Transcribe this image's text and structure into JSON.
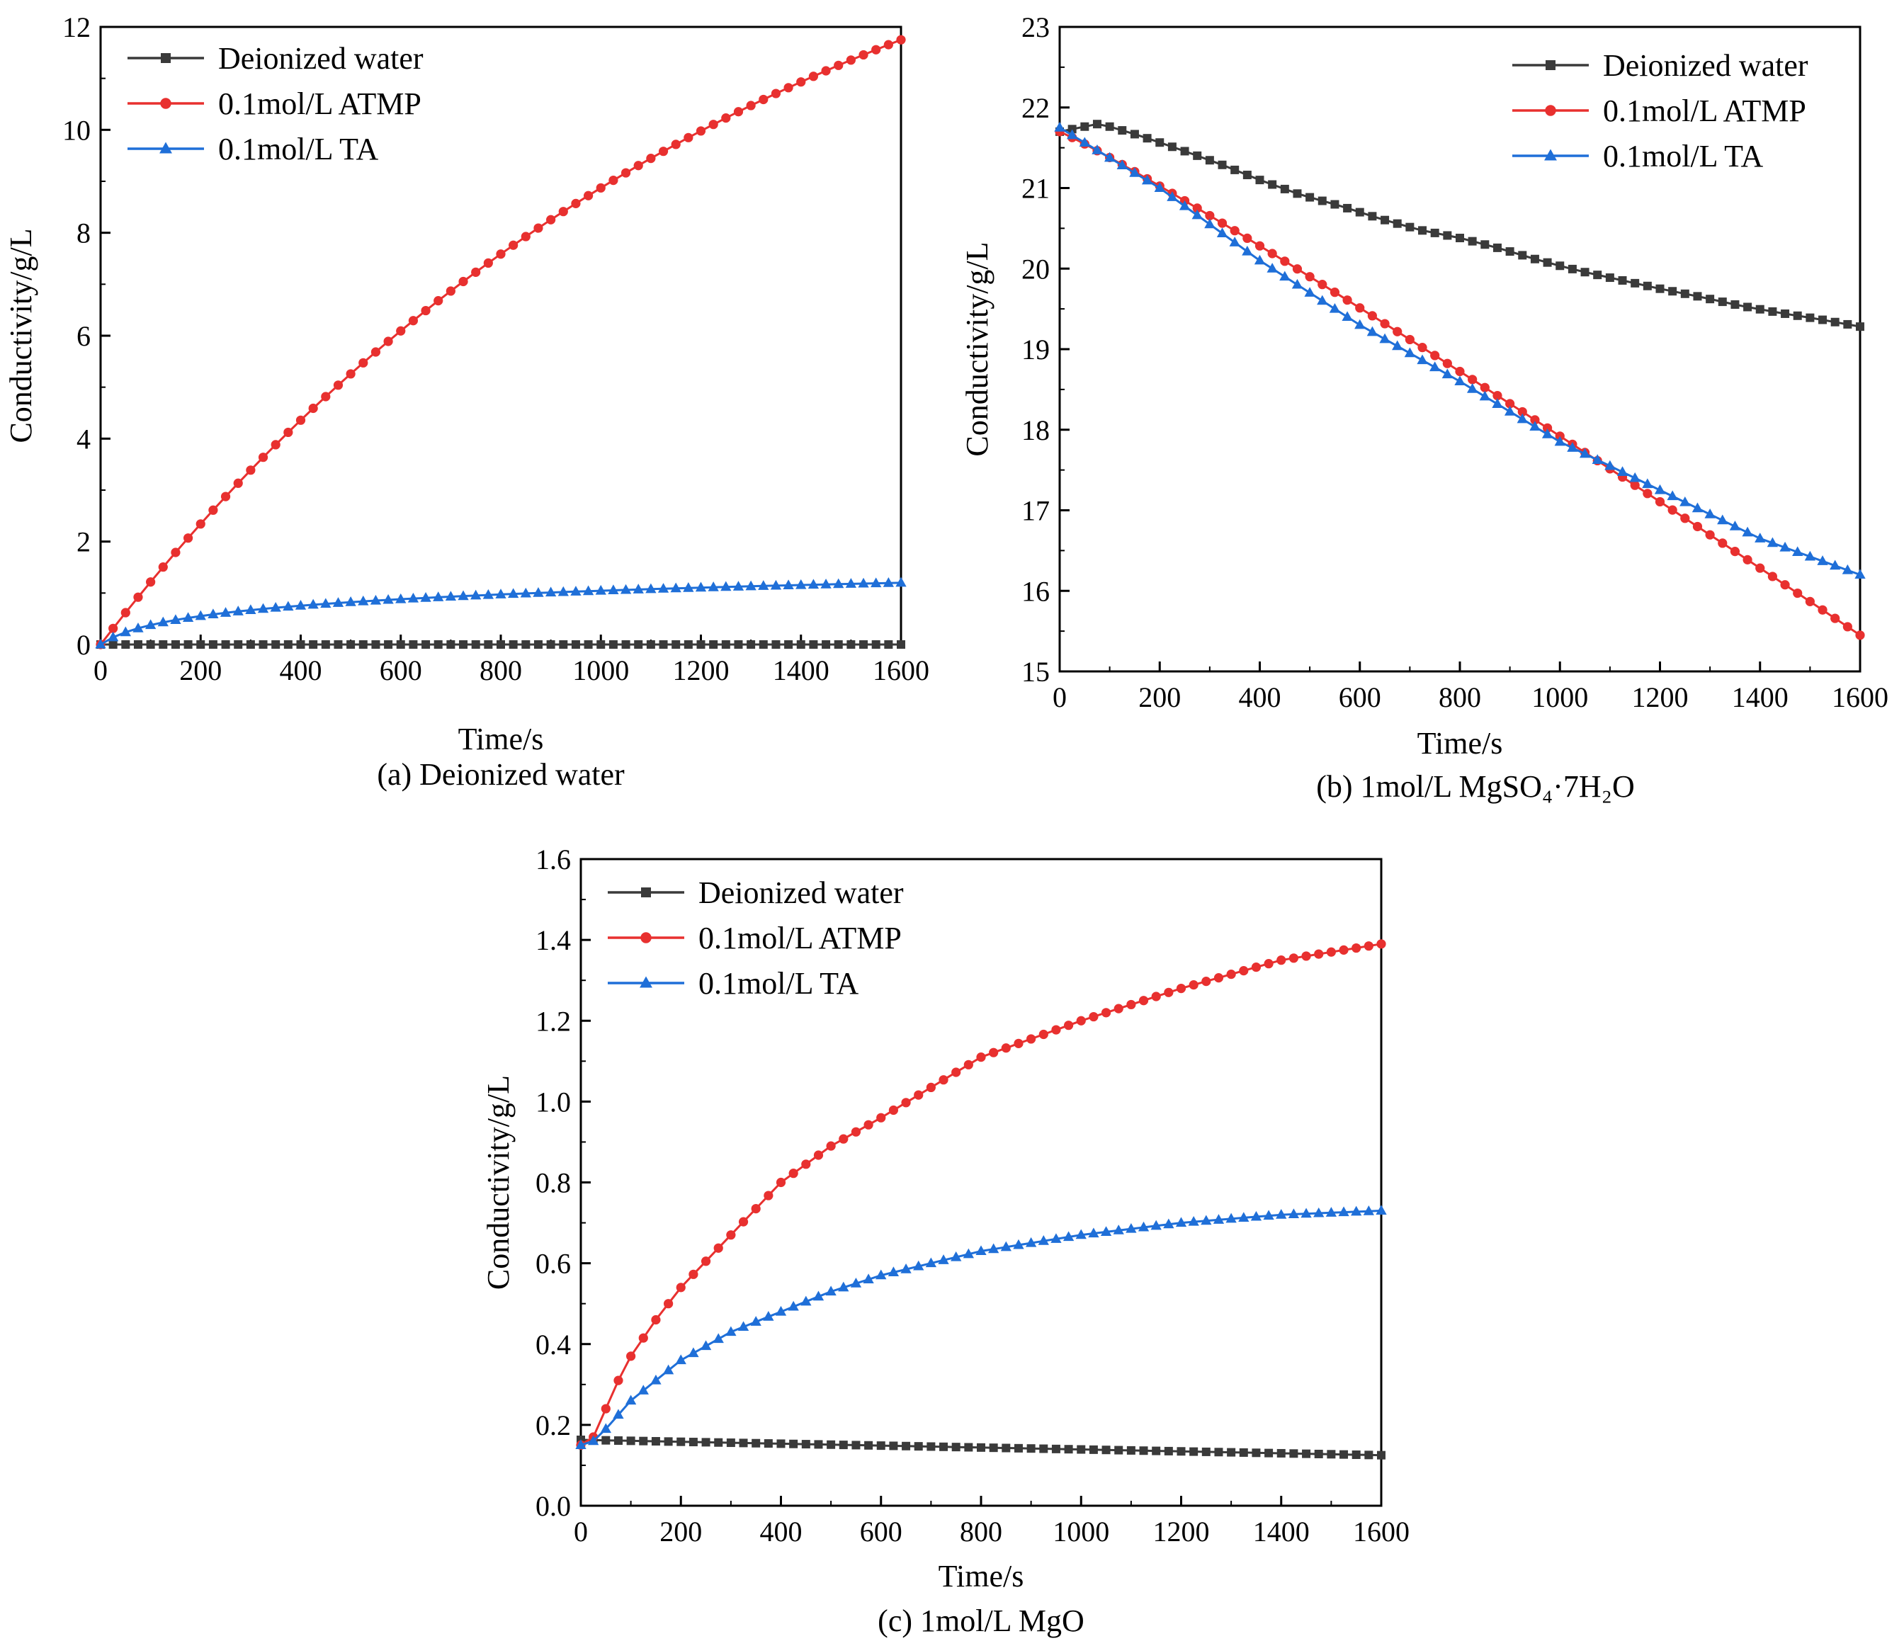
{
  "figure": {
    "colors": {
      "deionized": "#3a3a3a",
      "atmp": "#e8302f",
      "ta": "#1f6fd8",
      "axis": "#000000",
      "background": "#ffffff"
    }
  },
  "chart_data": [
    {
      "type": "line",
      "caption": "(a) Deionized water",
      "xlabel": "Time/s",
      "ylabel": "Conductivity/g/L",
      "xlim": [
        0,
        1600
      ],
      "ylim": [
        0,
        12
      ],
      "xticks": [
        0,
        200,
        400,
        600,
        800,
        1000,
        1200,
        1400,
        1600
      ],
      "yticks": [
        0,
        2,
        4,
        6,
        8,
        10,
        12
      ],
      "ytick_labels": [
        "0",
        "2",
        "4",
        "6",
        "8",
        "10",
        "12"
      ],
      "legend_position": "top-left",
      "grid": false,
      "series": [
        {
          "name": "Deionized water",
          "marker": "square",
          "color_key": "deionized",
          "model": "flat",
          "start": 0.0,
          "end": 0.0
        },
        {
          "name": "0.1mol/L ATMP",
          "marker": "circle",
          "color_key": "atmp",
          "model": "saturating",
          "start": 0.0,
          "end": 11.75,
          "k": 0.00075
        },
        {
          "name": "0.1mol/L TA",
          "marker": "triangle",
          "color_key": "ta",
          "model": "log",
          "start": 0.0,
          "end": 1.2,
          "k": 0.02
        }
      ]
    },
    {
      "type": "line",
      "caption": "(b) 1mol/L MgSO₄·7H₂O",
      "xlabel": "Time/s",
      "ylabel": "Conductivity/g/L",
      "xlim": [
        0,
        1600
      ],
      "ylim": [
        15,
        23
      ],
      "xticks": [
        0,
        200,
        400,
        600,
        800,
        1000,
        1200,
        1400,
        1600
      ],
      "yticks": [
        15,
        16,
        17,
        18,
        19,
        20,
        21,
        22,
        23
      ],
      "ytick_labels": [
        "15",
        "16",
        "17",
        "18",
        "19",
        "20",
        "21",
        "22",
        "23"
      ],
      "legend_position": "top-right",
      "grid": false,
      "series": [
        {
          "name": "Deionized water",
          "marker": "square",
          "color_key": "deionized",
          "model": "points",
          "x": [
            0,
            80,
            160,
            240,
            320,
            400,
            480,
            560,
            640,
            720,
            800,
            880,
            960,
            1040,
            1120,
            1200,
            1280,
            1360,
            1440,
            1520,
            1600
          ],
          "y": [
            21.7,
            21.8,
            21.65,
            21.48,
            21.3,
            21.1,
            20.92,
            20.78,
            20.62,
            20.48,
            20.38,
            20.25,
            20.1,
            19.97,
            19.86,
            19.75,
            19.65,
            19.54,
            19.45,
            19.37,
            19.28
          ]
        },
        {
          "name": "0.1mol/L ATMP",
          "marker": "circle",
          "color_key": "atmp",
          "model": "curve",
          "start": 21.7,
          "end": 15.45,
          "p": 1.07
        },
        {
          "name": "0.1mol/L TA",
          "marker": "triangle",
          "color_key": "ta",
          "model": "points",
          "x": [
            0,
            200,
            400,
            600,
            800,
            1000,
            1200,
            1400,
            1600
          ],
          "y": [
            21.75,
            21.0,
            20.1,
            19.3,
            18.6,
            17.85,
            17.25,
            16.65,
            16.2
          ]
        }
      ]
    },
    {
      "type": "line",
      "caption": "(c) 1mol/L MgO",
      "xlabel": "Time/s",
      "ylabel": "Conductivity/g/L",
      "xlim": [
        0,
        1600
      ],
      "ylim": [
        0,
        1.6
      ],
      "xticks": [
        0,
        200,
        400,
        600,
        800,
        1000,
        1200,
        1400,
        1600
      ],
      "yticks": [
        0,
        0.2,
        0.4,
        0.6,
        0.8,
        1.0,
        1.2,
        1.4,
        1.6
      ],
      "ytick_labels": [
        "0.0",
        "0.2",
        "0.4",
        "0.6",
        "0.8",
        "1.0",
        "1.2",
        "1.4",
        "1.6"
      ],
      "legend_position": "top-left",
      "grid": false,
      "series": [
        {
          "name": "Deionized water",
          "marker": "square",
          "color_key": "deionized",
          "model": "linear",
          "start": 0.163,
          "end": 0.125
        },
        {
          "name": "0.1mol/L ATMP",
          "marker": "circle",
          "color_key": "atmp",
          "model": "points",
          "x": [
            0,
            25,
            50,
            75,
            100,
            150,
            200,
            300,
            400,
            500,
            600,
            800,
            1000,
            1200,
            1400,
            1600
          ],
          "y": [
            0.15,
            0.17,
            0.24,
            0.31,
            0.37,
            0.46,
            0.54,
            0.67,
            0.8,
            0.89,
            0.96,
            1.11,
            1.2,
            1.28,
            1.35,
            1.39
          ]
        },
        {
          "name": "0.1mol/L TA",
          "marker": "triangle",
          "color_key": "ta",
          "model": "points",
          "x": [
            0,
            25,
            50,
            100,
            200,
            300,
            400,
            500,
            600,
            800,
            1000,
            1200,
            1400,
            1600
          ],
          "y": [
            0.15,
            0.16,
            0.19,
            0.26,
            0.36,
            0.43,
            0.48,
            0.53,
            0.57,
            0.63,
            0.67,
            0.7,
            0.72,
            0.73
          ]
        }
      ]
    }
  ]
}
